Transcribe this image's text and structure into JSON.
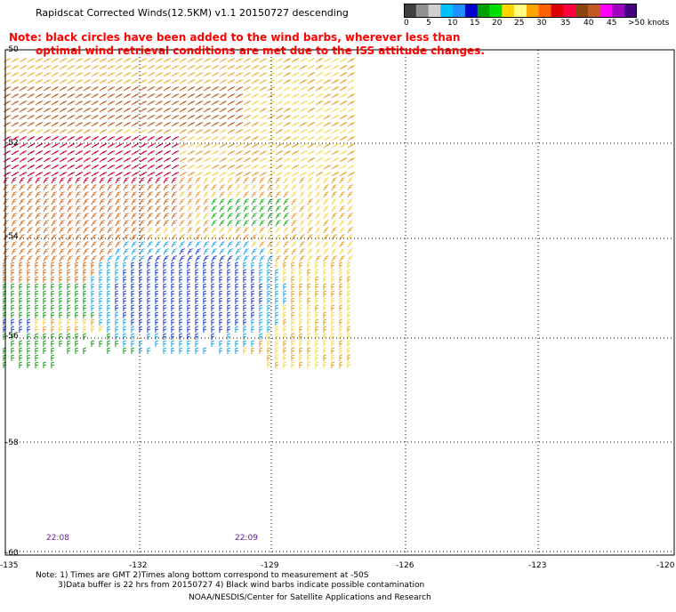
{
  "header": {
    "title": "Rapidscat Corrected Winds(12.5KM) v1.1 20150727 descending",
    "note_line1": "Note: black circles have been added to the wind barbs, wherever less than",
    "note_line2": "optimal wind retrieval conditions are met due to the ISS attitude changes."
  },
  "colorbar": {
    "colors": [
      "#404040",
      "#909090",
      "#d0d0d0",
      "#00bfff",
      "#1e90ff",
      "#0000cd",
      "#00a000",
      "#00e000",
      "#ffd700",
      "#ffff80",
      "#ffa500",
      "#ff6000",
      "#e00000",
      "#ff0040",
      "#8b4513",
      "#c05a20",
      "#ff00ff",
      "#a000c0",
      "#400080"
    ],
    "labels": [
      "0",
      "5",
      "10",
      "15",
      "20",
      "25",
      "30",
      "35",
      "40",
      "45",
      ">50 knots"
    ]
  },
  "map": {
    "lat_labels": [
      "-50",
      "-52",
      "-54",
      "-56",
      "-58",
      "-60"
    ],
    "lon_labels": [
      "-135",
      "-132",
      "-129",
      "-126",
      "-123",
      "-120"
    ],
    "time_labels": [
      "22:08",
      "22:09"
    ]
  },
  "footer": {
    "line1": "Note: 1) Times are GMT 2)Times along bottom correspond to measurement at -50S",
    "line2": "3)Data buffer is 22 hrs from 20150727 4) Black wind barbs indicate possible contamination",
    "line3": "NOAA/NESDIS/Center for Satellite Applications and Research"
  }
}
